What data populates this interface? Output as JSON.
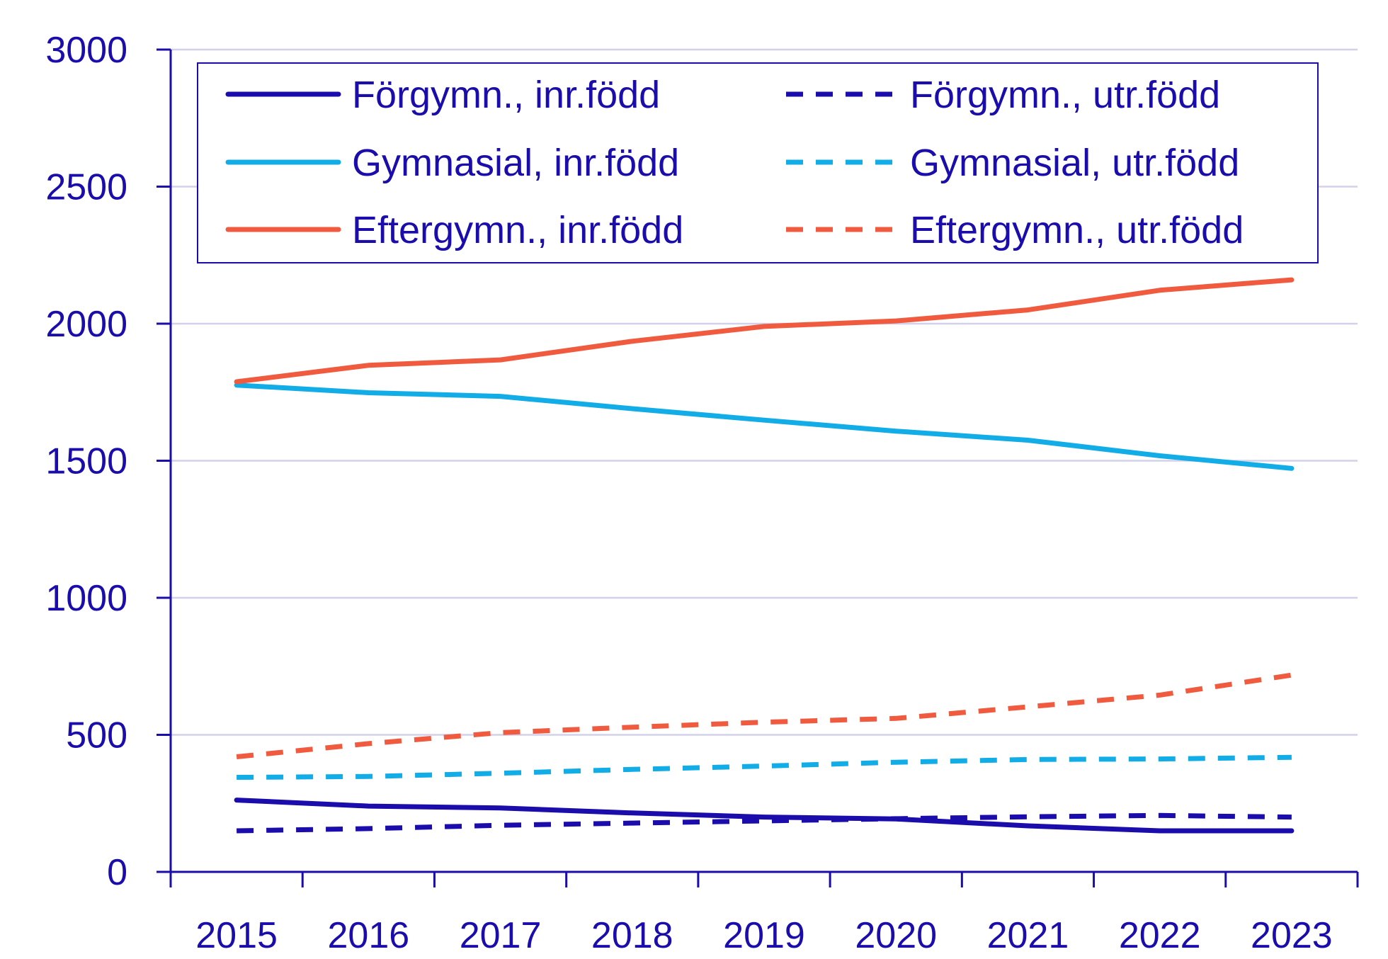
{
  "chart_data": {
    "type": "line",
    "title": "",
    "xlabel": "",
    "ylabel": "",
    "x": [
      "2015",
      "2016",
      "2017",
      "2018",
      "2019",
      "2020",
      "2021",
      "2022",
      "2023"
    ],
    "ylim": [
      0,
      3000
    ],
    "yticks": [
      "0",
      "500",
      "1000",
      "1500",
      "2000",
      "2500",
      "3000"
    ],
    "grid": "horizontal",
    "legend_position": "top",
    "colors": {
      "axis": "#1a0dab",
      "grid": "#d3d0ea",
      "forgymn": "#1a0dab",
      "gymnasial": "#12ade6",
      "eftergymn": "#f05b3f"
    },
    "series": [
      {
        "name": "Förgymn., inr.född",
        "dashed": false,
        "color": "#1a0dab",
        "values": [
          262,
          240,
          233,
          215,
          200,
          193,
          168,
          150,
          150
        ]
      },
      {
        "name": "Förgymn., utr.född",
        "dashed": true,
        "color": "#1a0dab",
        "values": [
          150,
          158,
          170,
          178,
          186,
          194,
          201,
          206,
          200
        ]
      },
      {
        "name": "Gymnasial, inr.född",
        "dashed": false,
        "color": "#12ade6",
        "values": [
          1776,
          1748,
          1735,
          1690,
          1648,
          1608,
          1575,
          1518,
          1472
        ]
      },
      {
        "name": "Gymnasial, utr.född",
        "dashed": true,
        "color": "#12ade6",
        "values": [
          345,
          348,
          360,
          374,
          386,
          400,
          410,
          412,
          418
        ]
      },
      {
        "name": "Eftergymn., inr.född",
        "dashed": false,
        "color": "#f05b3f",
        "values": [
          1788,
          1848,
          1868,
          1936,
          1990,
          2010,
          2050,
          2122,
          2160
        ]
      },
      {
        "name": "Eftergymn., utr.född",
        "dashed": true,
        "color": "#f05b3f",
        "values": [
          420,
          468,
          508,
          528,
          546,
          560,
          602,
          645,
          718
        ]
      }
    ]
  }
}
